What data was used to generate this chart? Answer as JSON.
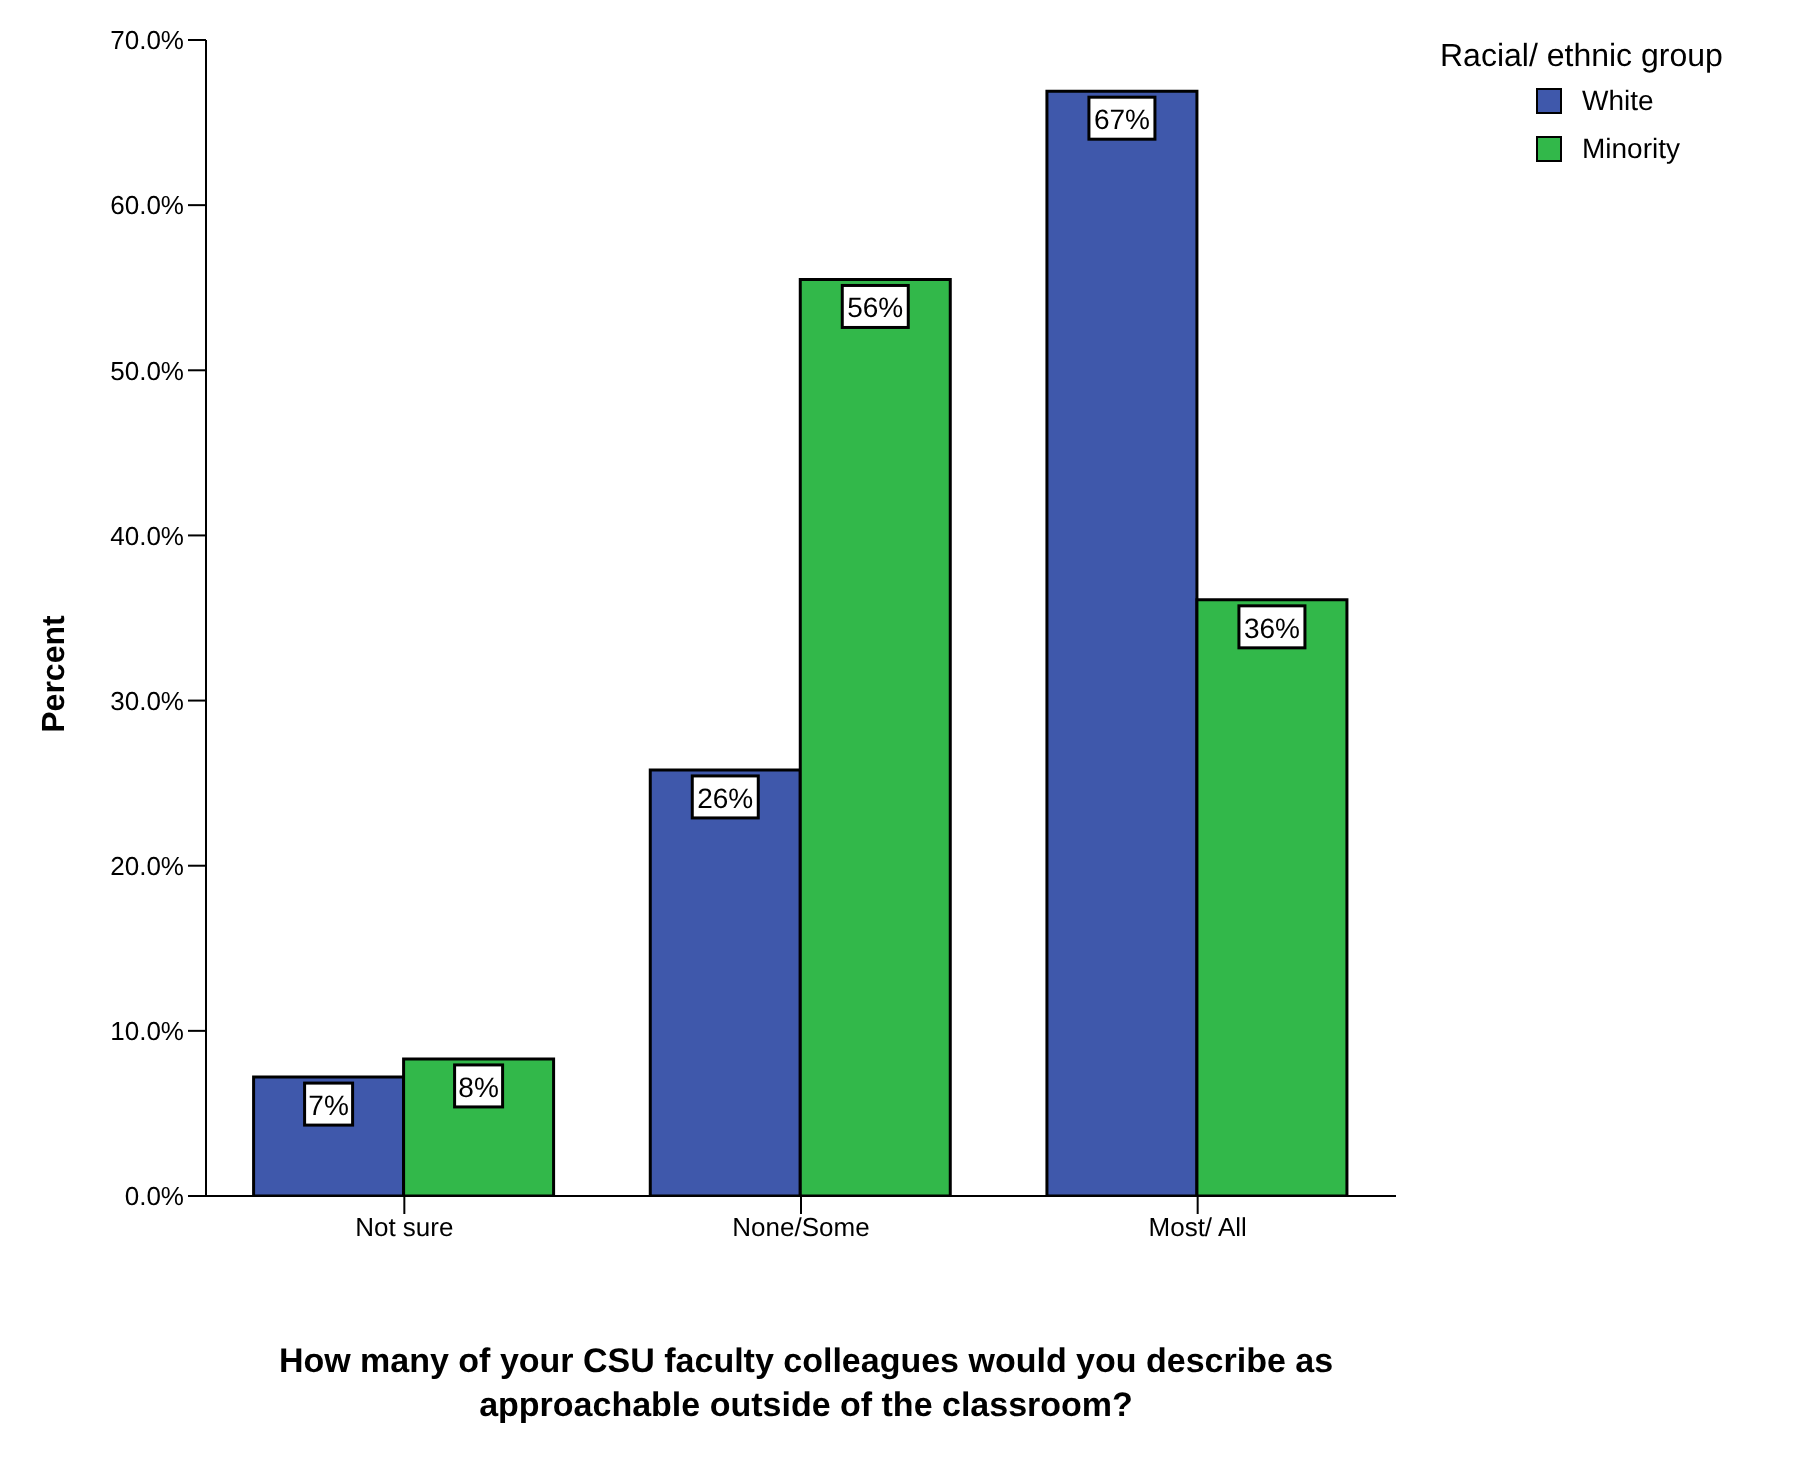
{
  "chart_data": {
    "type": "bar",
    "xlabel": "How many of your CSU faculty colleagues would you describe as approachable outside of the classroom?",
    "ylabel": "Percent",
    "legend_title": "Racial/ ethnic group",
    "legend": "top right",
    "categories": [
      "Not sure",
      "None/Some",
      "Most/ All"
    ],
    "series": [
      {
        "name": "White",
        "color": "#3f58ab",
        "values": [
          7.2,
          25.8,
          66.9
        ],
        "value_labels": [
          "7%",
          "26%",
          "67%"
        ]
      },
      {
        "name": "Minority",
        "color": "#32b84a",
        "values": [
          8.3,
          55.5,
          36.1
        ],
        "value_labels": [
          "8%",
          "56%",
          "36%"
        ]
      }
    ],
    "ylim": [
      0,
      70
    ],
    "yticks": [
      {
        "value": 0,
        "label": "0.0%"
      },
      {
        "value": 10,
        "label": "10.0%"
      },
      {
        "value": 20,
        "label": "20.0%"
      },
      {
        "value": 30,
        "label": "30.0%"
      },
      {
        "value": 40,
        "label": "40.0%"
      },
      {
        "value": 50,
        "label": "50.0%"
      },
      {
        "value": 60,
        "label": "60.0%"
      },
      {
        "value": 70,
        "label": "70.0%"
      }
    ],
    "grid": false
  }
}
